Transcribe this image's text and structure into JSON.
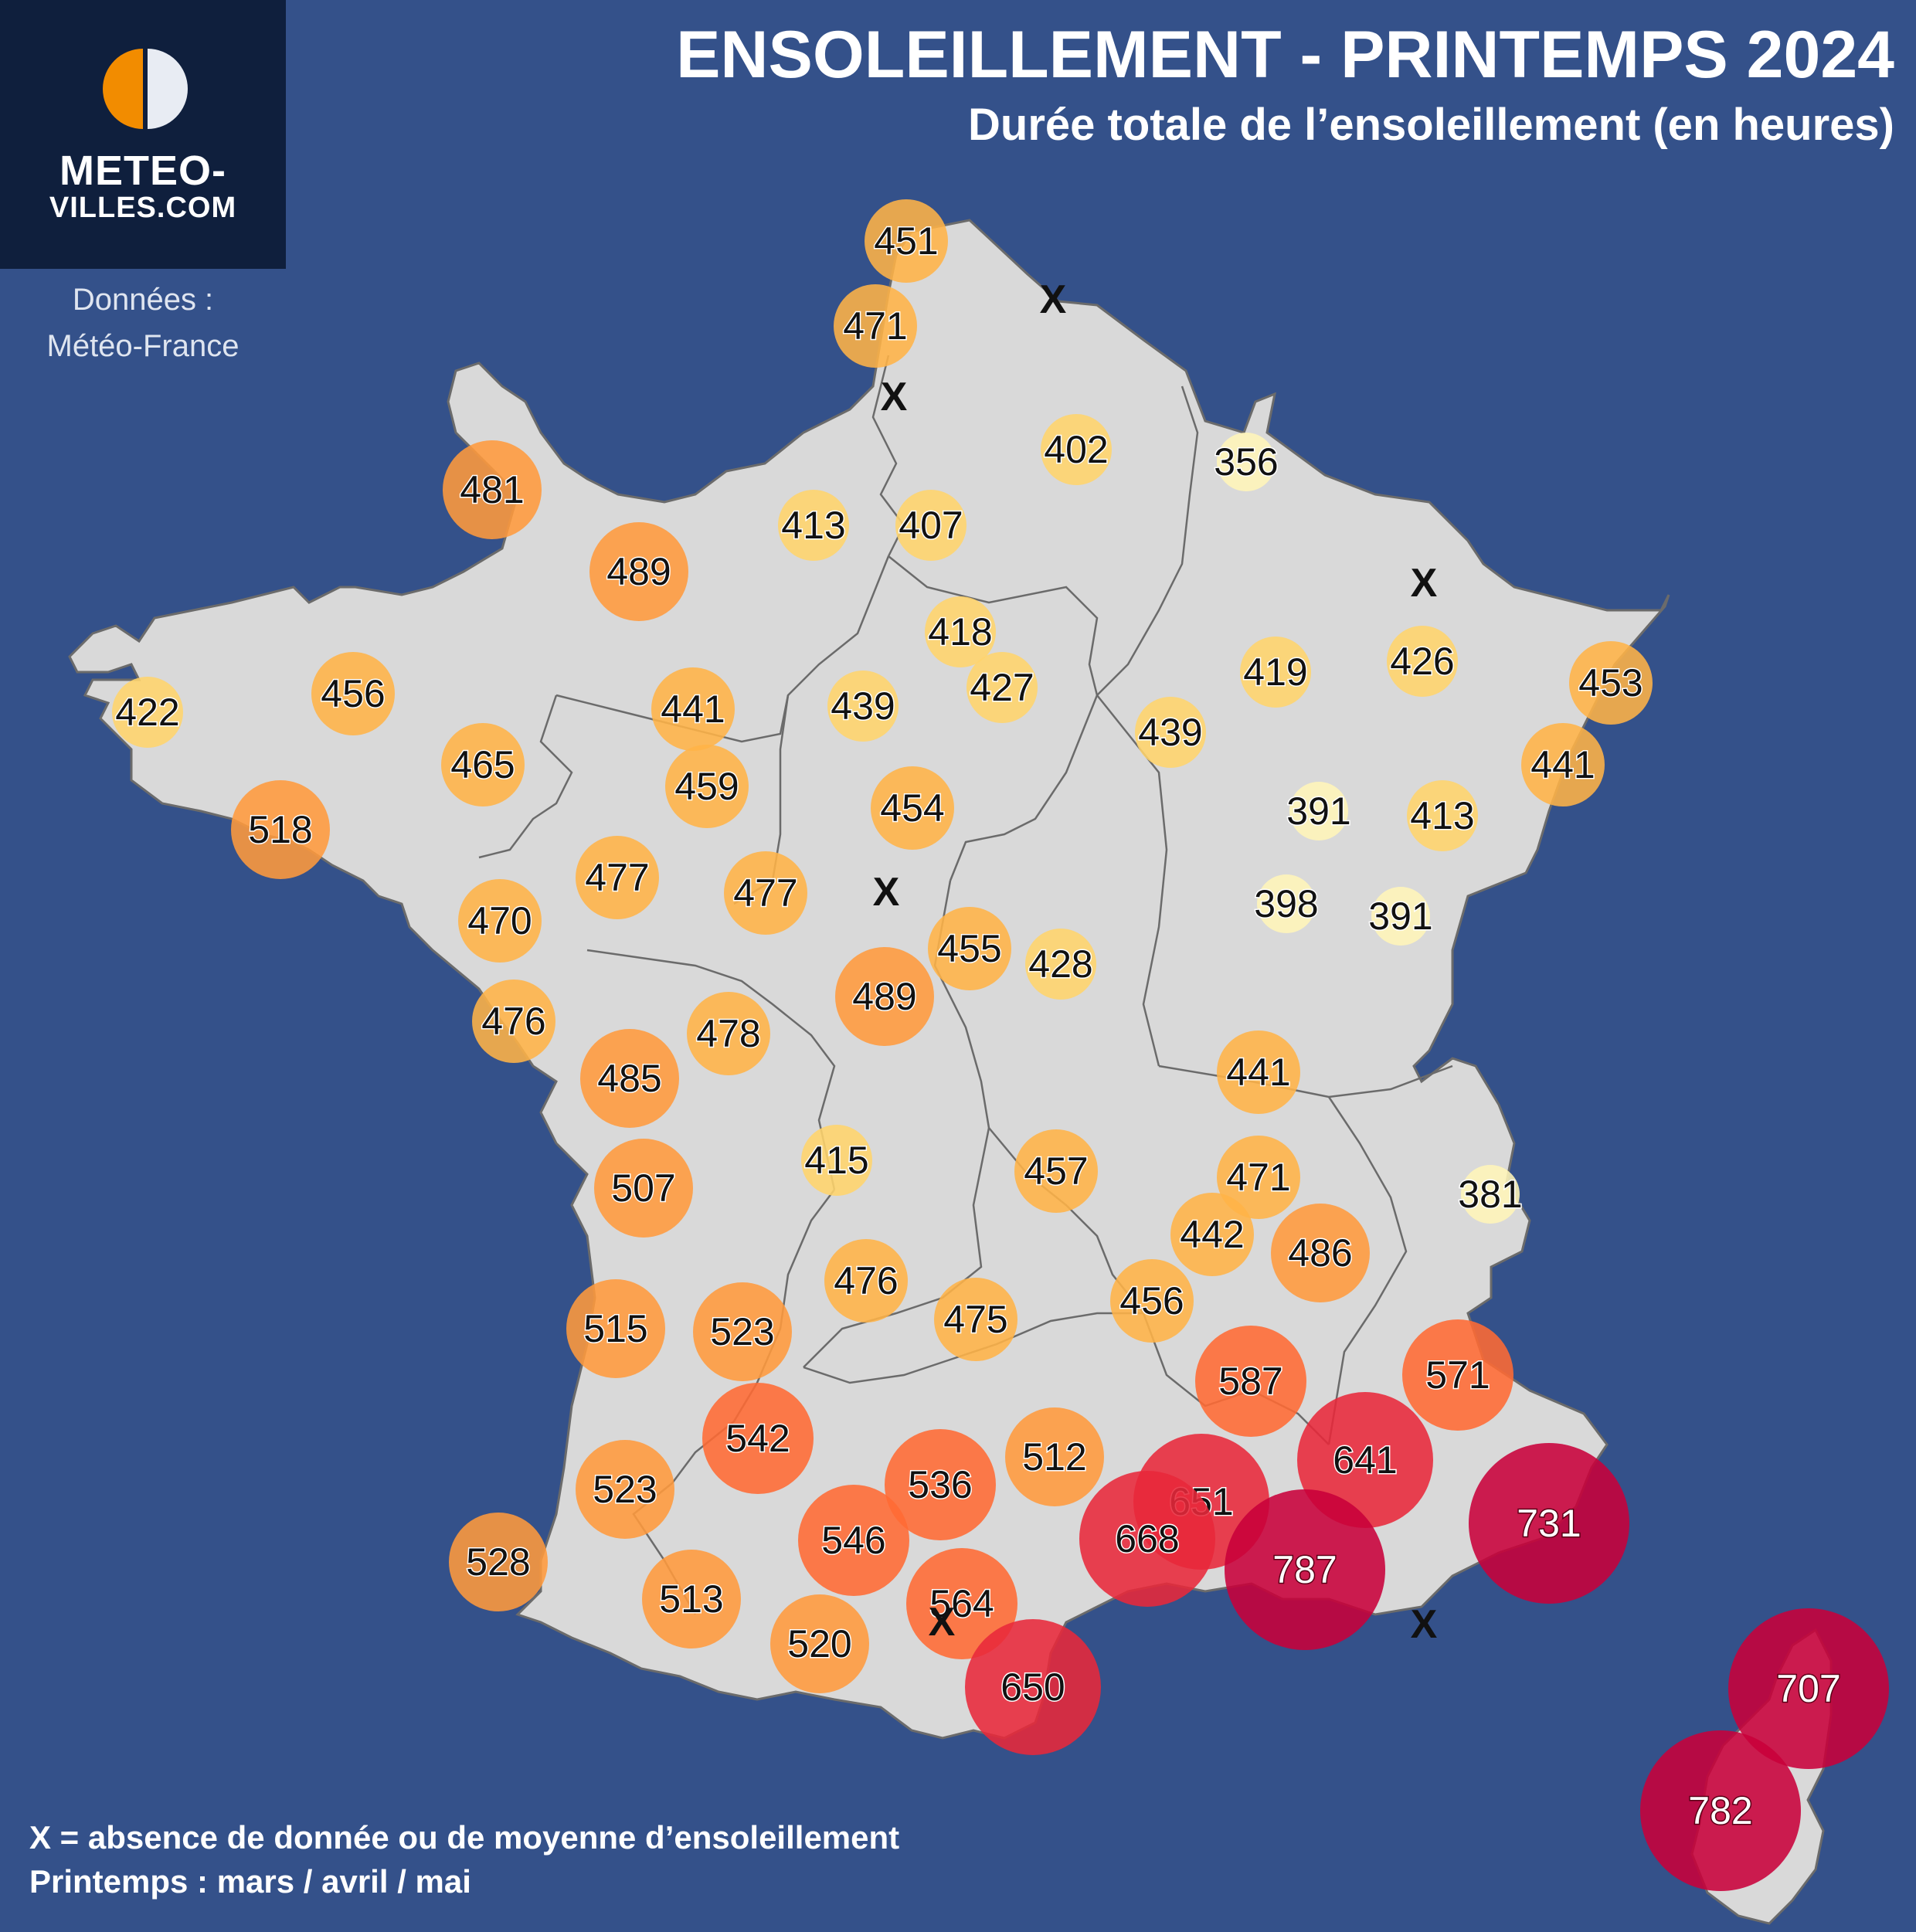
{
  "header": {
    "title": "ENSOLEILLEMENT - PRINTEMPS 2024",
    "subtitle": "Durée totale de l’ensoleillement (en heures)"
  },
  "logo": {
    "line1": "METEO-",
    "line2": "VILLES.COM",
    "icon": "sun-half-icon",
    "icon_colors": [
      "#f28c00",
      "#e8ecf3"
    ]
  },
  "source": {
    "line1": "Données :",
    "line2": "Météo-France"
  },
  "legend": {
    "missing_note": "X = absence de donnée ou de moyenne d’ensoleillement",
    "season_note": "Printemps : mars / avril / mai"
  },
  "colors": {
    "background": "#34518a",
    "land": "#d9d9d9",
    "border": "#555555",
    "scale": [
      "#fff5b8",
      "#ffd46b",
      "#ffb347",
      "#ff9a3c",
      "#ff6a33",
      "#e8283a",
      "#c8003a"
    ]
  },
  "missing_marker": "X",
  "stations": [
    {
      "value": "451"
    },
    {
      "value": "471"
    },
    {
      "value": "402"
    },
    {
      "value": "356"
    },
    {
      "value": "481"
    },
    {
      "value": "413"
    },
    {
      "value": "407"
    },
    {
      "value": "489"
    },
    {
      "value": "418"
    },
    {
      "value": "427"
    },
    {
      "value": "439"
    },
    {
      "value": "441"
    },
    {
      "value": "456"
    },
    {
      "value": "422"
    },
    {
      "value": "465"
    },
    {
      "value": "459"
    },
    {
      "value": "454"
    },
    {
      "value": "518"
    },
    {
      "value": "419"
    },
    {
      "value": "426"
    },
    {
      "value": "453"
    },
    {
      "value": "439"
    },
    {
      "value": "441"
    },
    {
      "value": "391"
    },
    {
      "value": "413"
    },
    {
      "value": "477"
    },
    {
      "value": "477"
    },
    {
      "value": "470"
    },
    {
      "value": "398"
    },
    {
      "value": "391"
    },
    {
      "value": "455"
    },
    {
      "value": "428"
    },
    {
      "value": "489"
    },
    {
      "value": "476"
    },
    {
      "value": "478"
    },
    {
      "value": "485"
    },
    {
      "value": "441"
    },
    {
      "value": "415"
    },
    {
      "value": "457"
    },
    {
      "value": "471"
    },
    {
      "value": "381"
    },
    {
      "value": "507"
    },
    {
      "value": "442"
    },
    {
      "value": "486"
    },
    {
      "value": "476"
    },
    {
      "value": "475"
    },
    {
      "value": "456"
    },
    {
      "value": "515"
    },
    {
      "value": "523"
    },
    {
      "value": "587"
    },
    {
      "value": "571"
    },
    {
      "value": "542"
    },
    {
      "value": "536"
    },
    {
      "value": "512"
    },
    {
      "value": "641"
    },
    {
      "value": "651"
    },
    {
      "value": "523"
    },
    {
      "value": "546"
    },
    {
      "value": "668"
    },
    {
      "value": "731"
    },
    {
      "value": "528"
    },
    {
      "value": "787"
    },
    {
      "value": "513"
    },
    {
      "value": "564"
    },
    {
      "value": "520"
    },
    {
      "value": "650"
    },
    {
      "value": "707"
    },
    {
      "value": "782"
    }
  ],
  "missing_count": 6
}
